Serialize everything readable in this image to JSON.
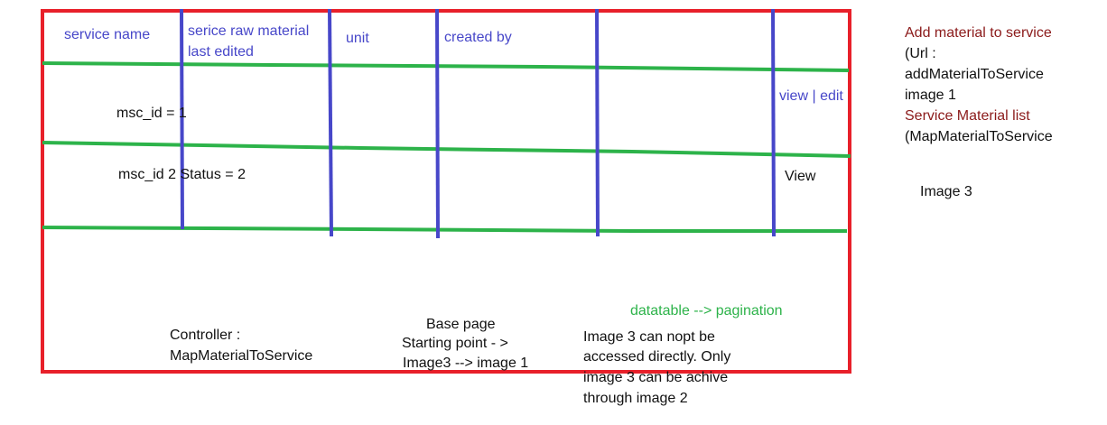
{
  "table": {
    "headers": [
      "service name",
      "serice raw material",
      "last edited",
      "unit",
      "created by"
    ],
    "rows": [
      {
        "label": "msc_id = 1",
        "actions": [
          "view",
          "edit"
        ]
      },
      {
        "label": "msc_id 2 Status = 2",
        "actions": [
          "View"
        ]
      }
    ]
  },
  "notes": {
    "pagination": "datatable --> pagination",
    "controller": [
      "Controller :",
      "MapMaterialToService"
    ],
    "base_page": [
      "Base page",
      "Starting point  - >",
      "Image3 --> image 1"
    ],
    "image3_note": [
      "Image 3 can nopt be",
      "accessed directly. Only",
      "image 3 can be achive",
      "through image 2"
    ]
  },
  "sidebar": {
    "lines": [
      "Add material to service",
      "(Url :",
      "addMaterialToService",
      "image 1",
      "Service Material list",
      "(MapMaterialToService"
    ],
    "image_label": "Image 3"
  },
  "colors": {
    "frame": "#e8202a",
    "row_lines": "#2db34a",
    "column_lines": "#4747c9",
    "header_text": "#4747c9",
    "sidebar_heading": "#8b1a1a"
  }
}
